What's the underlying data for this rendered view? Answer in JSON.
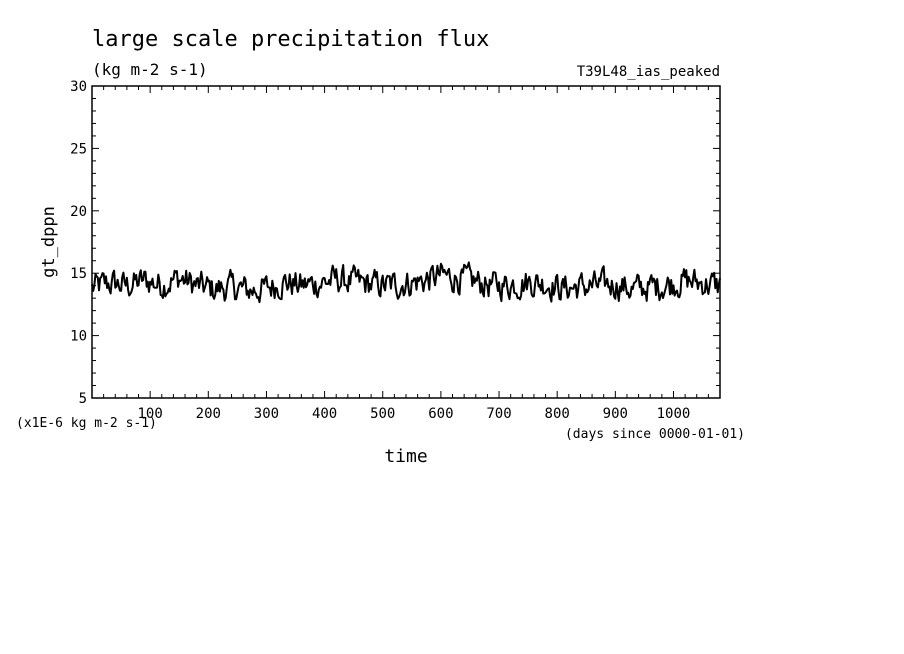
{
  "chart_data": {
    "type": "line",
    "title": "large scale precipitation flux",
    "subtitle": "(kg m-2 s-1)",
    "run_label": "T39L48_ias_peaked",
    "ylabel": "gt_dppn",
    "xlabel": "time",
    "x_unit_note": "(days since 0000-01-01)",
    "y_scale_note": "(x1E-6 kg m-2 s-1)",
    "xlim": [
      0,
      1080
    ],
    "ylim": [
      5,
      30
    ],
    "xticks": [
      100,
      200,
      300,
      400,
      500,
      600,
      700,
      800,
      900,
      1000
    ],
    "yticks": [
      5,
      10,
      15,
      20,
      25,
      30
    ],
    "grid": false,
    "series": [
      {
        "x": [
          0,
          30,
          60,
          90,
          120,
          150,
          180,
          210,
          240,
          270,
          300,
          330,
          360,
          390,
          420,
          450,
          480,
          510,
          540,
          570,
          600,
          630,
          660,
          690,
          720,
          750,
          780,
          810,
          840,
          870,
          900,
          930,
          960,
          990,
          1020,
          1050,
          1080
        ],
        "values": [
          13.8,
          14.2,
          14.0,
          14.4,
          14.1,
          14.6,
          14.0,
          13.7,
          13.9,
          13.6,
          13.8,
          14.3,
          14.0,
          14.2,
          14.5,
          14.3,
          14.1,
          14.0,
          14.2,
          14.4,
          14.8,
          14.6,
          14.3,
          14.0,
          14.1,
          14.3,
          14.2,
          13.8,
          13.9,
          14.0,
          14.1,
          13.7,
          13.9,
          14.1,
          14.4,
          14.2,
          14.0
        ],
        "noise_amplitude": 1.8
      }
    ]
  }
}
